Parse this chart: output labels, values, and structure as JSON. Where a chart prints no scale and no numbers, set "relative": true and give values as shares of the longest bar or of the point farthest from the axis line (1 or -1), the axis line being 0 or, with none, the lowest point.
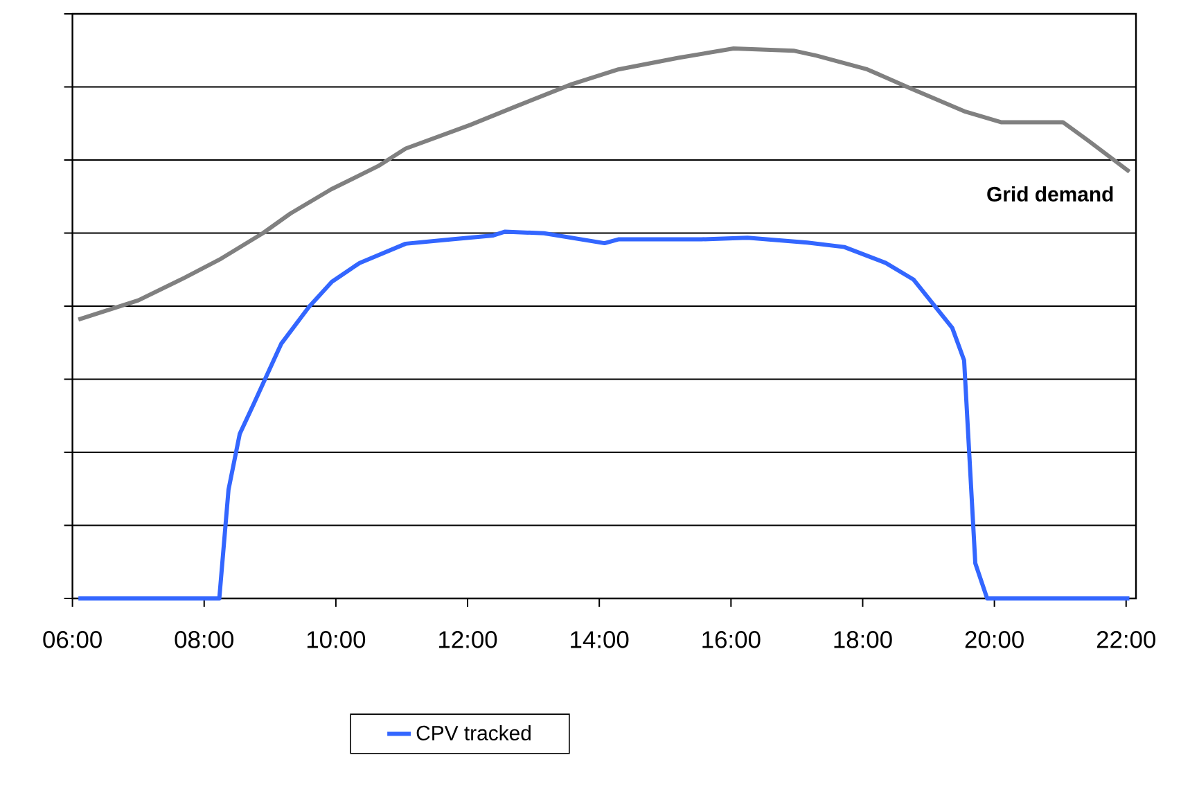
{
  "chart_data": {
    "type": "line",
    "relative": true,
    "grid": "y",
    "legend": "bottom",
    "line_style": "solid",
    "marker": "none",
    "xlim": [
      6,
      22.15
    ],
    "xticks": [
      {
        "value": 6,
        "label": "06:00"
      },
      {
        "value": 8,
        "label": "08:00"
      },
      {
        "value": 10,
        "label": "10:00"
      },
      {
        "value": 12,
        "label": "12:00"
      },
      {
        "value": 14,
        "label": "14:00"
      },
      {
        "value": 16,
        "label": "16:00"
      },
      {
        "value": 18,
        "label": "18:00"
      },
      {
        "value": 20,
        "label": "20:00"
      },
      {
        "value": 22,
        "label": "22:00"
      }
    ],
    "series": [
      {
        "name": "CPV tracked",
        "color": "#3366ff",
        "x": [
          6.09,
          8.23,
          8.37,
          8.54,
          8.75,
          9.17,
          9.59,
          9.94,
          10.36,
          11.06,
          11.76,
          12.39,
          12.57,
          13.16,
          14.08,
          14.29,
          15.55,
          16.25,
          17.16,
          17.72,
          18.35,
          18.77,
          19.36,
          19.54,
          19.71,
          19.89,
          22.05
        ],
        "values": [
          0,
          0,
          0.198,
          0.299,
          0.353,
          0.463,
          0.53,
          0.576,
          0.61,
          0.645,
          0.653,
          0.66,
          0.667,
          0.664,
          0.646,
          0.653,
          0.653,
          0.656,
          0.647,
          0.639,
          0.61,
          0.58,
          0.492,
          0.433,
          0.064,
          0,
          0
        ]
      },
      {
        "name": "Grid demand",
        "color": "#808080",
        "x": [
          6.09,
          7.0,
          7.7,
          8.26,
          8.89,
          9.31,
          9.93,
          10.64,
          11.06,
          12.04,
          12.74,
          13.58,
          14.29,
          15.2,
          16.04,
          16.95,
          17.3,
          18.07,
          18.7,
          19.54,
          20.1,
          21.04,
          21.43,
          22.05
        ],
        "values": [
          0.507,
          0.542,
          0.583,
          0.618,
          0.664,
          0.7,
          0.744,
          0.786,
          0.818,
          0.861,
          0.895,
          0.935,
          0.962,
          0.983,
          1.0,
          0.996,
          0.987,
          0.962,
          0.929,
          0.886,
          0.866,
          0.866,
          0.832,
          0.776
        ]
      }
    ]
  }
}
